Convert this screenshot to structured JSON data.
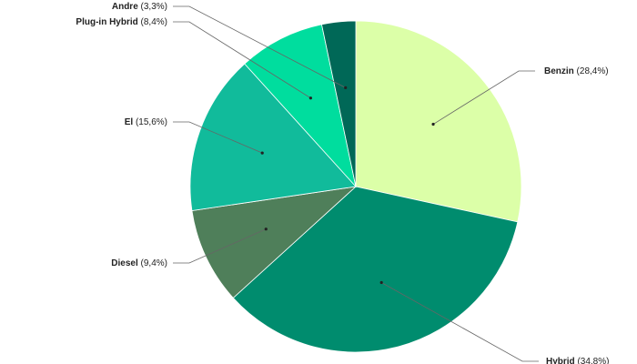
{
  "chart_data": {
    "type": "pie",
    "slices": [
      {
        "name": "Benzin",
        "value_label": "(28,4%)",
        "value": 28.4,
        "color": "#dcffa8"
      },
      {
        "name": "Hybrid",
        "value_label": "(34,8%)",
        "value": 34.8,
        "color": "#008c6e"
      },
      {
        "name": "Diesel",
        "value_label": "(9,4%)",
        "value": 9.4,
        "color": "#4f7f5a"
      },
      {
        "name": "El",
        "value_label": "(15,6%)",
        "value": 15.6,
        "color": "#11bb9b"
      },
      {
        "name": "Plug-in Hybrid",
        "value_label": "(8,4%)",
        "value": 8.4,
        "color": "#00dd9e"
      },
      {
        "name": "Andre",
        "value_label": "(3,3%)",
        "value": 3.3,
        "color": "#006857"
      }
    ]
  }
}
